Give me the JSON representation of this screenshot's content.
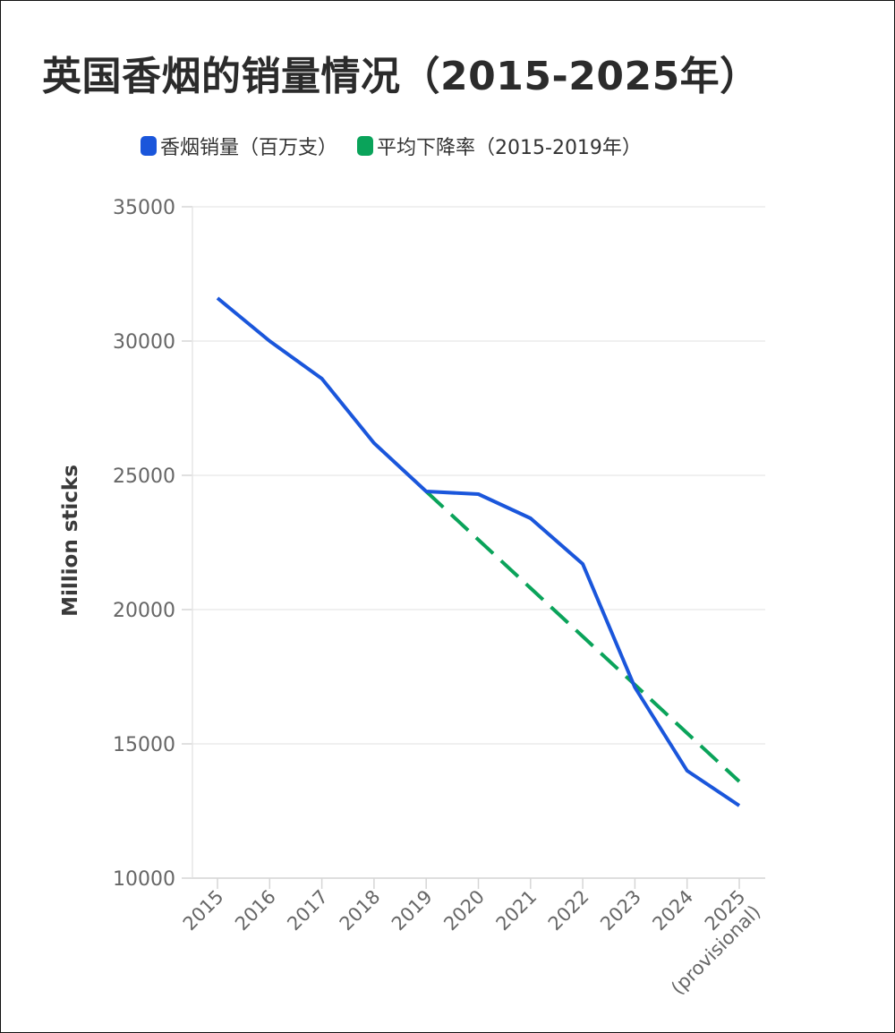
{
  "chart_data": {
    "type": "line",
    "title": "英国香烟的销量情况（2015-2025年）",
    "ylabel": "Million sticks",
    "xlabel": "",
    "ylim": [
      10000,
      35000
    ],
    "yticks": [
      "35000",
      "30000",
      "25000",
      "20000",
      "15000",
      "10000"
    ],
    "categories": [
      [
        "2015"
      ],
      [
        "2016"
      ],
      [
        "2017"
      ],
      [
        "2018"
      ],
      [
        "2019"
      ],
      [
        "2020"
      ],
      [
        "2021"
      ],
      [
        "2022"
      ],
      [
        "2023"
      ],
      [
        "2024"
      ],
      [
        "2025",
        "(provisional)"
      ]
    ],
    "grid": true,
    "legend_position": "top",
    "series": [
      {
        "name": "香烟销量（百万支）",
        "color": "#1a56db",
        "style": "solid",
        "values": [
          31600,
          30000,
          28600,
          26200,
          24400,
          24300,
          23400,
          21700,
          17100,
          14000,
          12700
        ]
      },
      {
        "name": "平均下降率（2015-2019年）",
        "color": "#0aa35a",
        "style": "dashed",
        "values": [
          null,
          null,
          null,
          null,
          24400,
          22600,
          20800,
          19000,
          17200,
          15400,
          13600
        ]
      }
    ]
  }
}
